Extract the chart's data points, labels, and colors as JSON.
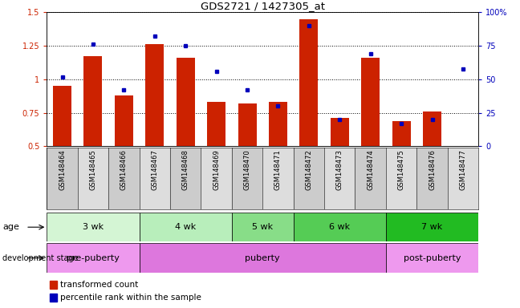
{
  "title": "GDS2721 / 1427305_at",
  "samples": [
    "GSM148464",
    "GSM148465",
    "GSM148466",
    "GSM148467",
    "GSM148468",
    "GSM148469",
    "GSM148470",
    "GSM148471",
    "GSM148472",
    "GSM148473",
    "GSM148474",
    "GSM148475",
    "GSM148476",
    "GSM148477"
  ],
  "red_values": [
    0.95,
    1.17,
    0.88,
    1.26,
    1.16,
    0.83,
    0.82,
    0.83,
    1.45,
    0.71,
    1.16,
    0.69,
    0.76,
    0.5
  ],
  "blue_percentiles": [
    52,
    76,
    42,
    82,
    75,
    56,
    42,
    30,
    90,
    20,
    69,
    17,
    20,
    58
  ],
  "ylim_left": [
    0.5,
    1.5
  ],
  "ylim_right": [
    0,
    100
  ],
  "yticks_left": [
    0.5,
    0.75,
    1.0,
    1.25,
    1.5
  ],
  "ytick_labels_left": [
    "0.5",
    "0.75",
    "1",
    "1.25",
    "1.5"
  ],
  "yticks_right": [
    0,
    25,
    50,
    75,
    100
  ],
  "ytick_labels_right": [
    "0",
    "25",
    "50",
    "75",
    "100%"
  ],
  "red_color": "#cc2200",
  "blue_color": "#0000bb",
  "bar_width": 0.6,
  "age_groups": [
    {
      "label": "3 wk",
      "start": 0,
      "end": 2,
      "color": "#d4f5d4"
    },
    {
      "label": "4 wk",
      "start": 3,
      "end": 5,
      "color": "#b8eebb"
    },
    {
      "label": "5 wk",
      "start": 6,
      "end": 7,
      "color": "#88dd88"
    },
    {
      "label": "6 wk",
      "start": 8,
      "end": 10,
      "color": "#55cc55"
    },
    {
      "label": "7 wk",
      "start": 11,
      "end": 13,
      "color": "#22bb22"
    }
  ],
  "dev_groups": [
    {
      "label": "pre-puberty",
      "start": 0,
      "end": 2,
      "color": "#ee99ee"
    },
    {
      "label": "puberty",
      "start": 3,
      "end": 10,
      "color": "#dd77dd"
    },
    {
      "label": "post-puberty",
      "start": 11,
      "end": 13,
      "color": "#ee99ee"
    }
  ],
  "age_label": "age",
  "dev_label": "development stage",
  "legend_red": "transformed count",
  "legend_blue": "percentile rank within the sample",
  "col_colors": [
    "#cccccc",
    "#dddddd"
  ]
}
